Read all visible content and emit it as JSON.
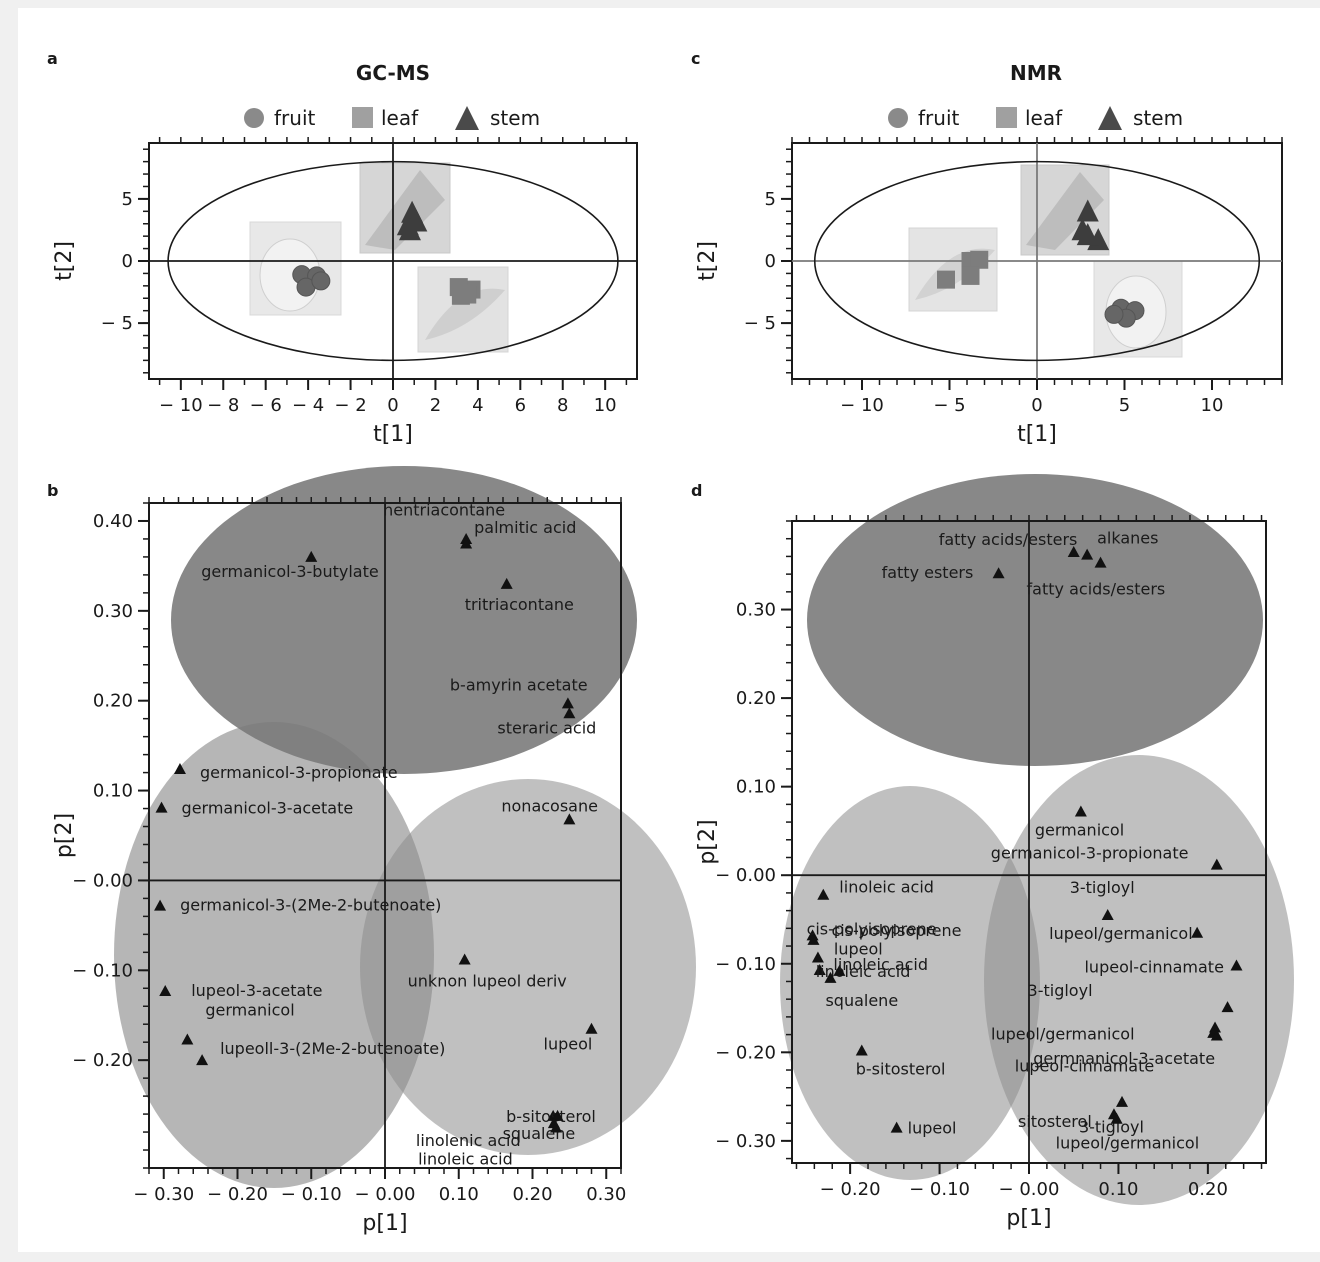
{
  "chart_data": [
    {
      "panel": "a",
      "type": "scatter",
      "title": "GC-MS",
      "xlabel": "t[1]",
      "ylabel": "t[2]",
      "xlim": [
        -11.5,
        11.5
      ],
      "ylim": [
        -9.5,
        9.5
      ],
      "xticks": [
        "− 10",
        "− 8",
        "− 6",
        "− 4",
        "− 2",
        "0",
        "2",
        "4",
        "6",
        "8",
        "10"
      ],
      "yticks": [
        "5",
        "0",
        "− 5"
      ],
      "legend": [
        "fruit",
        "leaf",
        "stem"
      ],
      "series": [
        {
          "name": "fruit",
          "points": [
            [
              -4.3,
              -1.1
            ],
            [
              -3.6,
              -1.2
            ],
            [
              -4.1,
              -2.1
            ],
            [
              -3.4,
              -1.6
            ]
          ]
        },
        {
          "name": "leaf",
          "points": [
            [
              3.2,
              -2.8
            ],
            [
              3.7,
              -2.3
            ],
            [
              3.1,
              -2.1
            ],
            [
              3.5,
              -2.7
            ]
          ]
        },
        {
          "name": "stem",
          "points": [
            [
              0.9,
              3.8
            ],
            [
              0.7,
              2.8
            ],
            [
              1.1,
              3.1
            ],
            [
              0.8,
              2.4
            ]
          ]
        }
      ]
    },
    {
      "panel": "c",
      "type": "scatter",
      "title": "NMR",
      "xlabel": "t[1]",
      "ylabel": "t[2]",
      "xlim": [
        -14,
        14
      ],
      "ylim": [
        -9.5,
        9.5
      ],
      "xticks": [
        "− 10",
        "− 5",
        "0",
        "5",
        "10"
      ],
      "yticks": [
        "5",
        "0",
        "− 5"
      ],
      "legend": [
        "fruit",
        "leaf",
        "stem"
      ],
      "series": [
        {
          "name": "fruit",
          "points": [
            [
              4.8,
              -3.8
            ],
            [
              5.6,
              -4.0
            ],
            [
              5.1,
              -4.6
            ],
            [
              4.4,
              -4.3
            ]
          ]
        },
        {
          "name": "leaf",
          "points": [
            [
              -3.8,
              0.0
            ],
            [
              -3.3,
              0.1
            ],
            [
              -3.8,
              -1.2
            ],
            [
              -5.2,
              -1.5
            ]
          ]
        },
        {
          "name": "stem",
          "points": [
            [
              2.9,
              3.9
            ],
            [
              2.6,
              2.4
            ],
            [
              3.5,
              1.6
            ],
            [
              2.9,
              2.0
            ]
          ]
        }
      ]
    },
    {
      "panel": "b",
      "type": "scatter",
      "xlabel": "p[1]",
      "ylabel": "p[2]",
      "xlim": [
        -0.32,
        0.32
      ],
      "ylim": [
        -0.32,
        0.42
      ],
      "xticks": [
        "− 0.30",
        "− 0.20",
        "− 0.10",
        "− 0.00",
        "0.10",
        "0.20",
        "0.30"
      ],
      "yticks": [
        "0.40",
        "0.30",
        "0.20",
        "0.10",
        "− 0.00",
        "− 0.10",
        "− 0.20"
      ],
      "points": [
        {
          "x": 0.11,
          "y": 0.38,
          "label": "palmitic acid"
        },
        {
          "x": 0.11,
          "y": 0.375,
          "label": "hentriacontane"
        },
        {
          "x": -0.1,
          "y": 0.36,
          "label": "germanicol-3-butylate"
        },
        {
          "x": 0.165,
          "y": 0.33,
          "label": "tritriacontane"
        },
        {
          "x": 0.248,
          "y": 0.197,
          "label": "b-amyrin acetate"
        },
        {
          "x": 0.25,
          "y": 0.186,
          "label": "steraric acid"
        },
        {
          "x": -0.278,
          "y": 0.124,
          "label": "germanicol-3-propionate"
        },
        {
          "x": -0.303,
          "y": 0.081,
          "label": "germanicol-3-acetate"
        },
        {
          "x": 0.25,
          "y": 0.068,
          "label": "nonacosane"
        },
        {
          "x": -0.305,
          "y": -0.028,
          "label": "germanicol-3-(2Me-2-butenoate)"
        },
        {
          "x": 0.108,
          "y": -0.088,
          "label": "unknon lupeol deriv"
        },
        {
          "x": -0.298,
          "y": -0.123,
          "label": "lupeol-3-acetate"
        },
        {
          "x": 0.28,
          "y": -0.165,
          "label": "lupeol"
        },
        {
          "x": -0.268,
          "y": -0.177,
          "label": "germanicol"
        },
        {
          "x": -0.248,
          "y": -0.2,
          "label": "lupeoll-3-(2Me-2-butenoate)"
        },
        {
          "x": 0.228,
          "y": -0.262,
          "label": "b-sitosterol"
        },
        {
          "x": 0.234,
          "y": -0.262,
          "label": "squalene"
        },
        {
          "x": 0.229,
          "y": -0.27,
          "label": "linolenic acid"
        },
        {
          "x": 0.232,
          "y": -0.275,
          "label": "linoleic acid"
        }
      ]
    },
    {
      "panel": "d",
      "type": "scatter",
      "xlabel": "p[1]",
      "ylabel": "p[2]",
      "xlim": [
        -0.265,
        0.265
      ],
      "ylim": [
        -0.325,
        0.4
      ],
      "xticks": [
        "− 0.20",
        "− 0.10",
        "− 0.00",
        "0.10",
        "0.20"
      ],
      "yticks": [
        "0.30",
        "0.20",
        "0.10",
        "− 0.00",
        "− 0.10",
        "− 0.20",
        "− 0.30"
      ],
      "points": [
        {
          "x": 0.05,
          "y": 0.365,
          "label": "fatty acids/esters"
        },
        {
          "x": 0.065,
          "y": 0.362,
          "label": "alkanes"
        },
        {
          "x": -0.034,
          "y": 0.341,
          "label": "fatty esters"
        },
        {
          "x": 0.08,
          "y": 0.353,
          "label": "fatty acids/esters"
        },
        {
          "x": 0.058,
          "y": 0.072,
          "label": "germanicol"
        },
        {
          "x": 0.21,
          "y": 0.012,
          "label": "germanicol-3-propionate"
        },
        {
          "x": -0.23,
          "y": -0.022,
          "label": "linoleic acid"
        },
        {
          "x": 0.088,
          "y": -0.045,
          "label": "3-tigloyl"
        },
        {
          "x": -0.242,
          "y": -0.068,
          "label": "cis-polyisoprene"
        },
        {
          "x": 0.188,
          "y": -0.065,
          "label": "lupeol/germanicol"
        },
        {
          "x": -0.241,
          "y": -0.073,
          "label": "cis-polyisoprene"
        },
        {
          "x": -0.236,
          "y": -0.093,
          "label": "lupeol"
        },
        {
          "x": 0.232,
          "y": -0.102,
          "label": "lupeol-cinnamate"
        },
        {
          "x": -0.234,
          "y": -0.107,
          "label": "linoleic acid"
        },
        {
          "x": -0.212,
          "y": -0.108,
          "label": "linoleic acid"
        },
        {
          "x": -0.222,
          "y": -0.116,
          "label": "squalene"
        },
        {
          "x": 0.222,
          "y": -0.149,
          "label": "3-tigloyl"
        },
        {
          "x": 0.208,
          "y": -0.172,
          "label": "lupeol/germanicol"
        },
        {
          "x": 0.206,
          "y": -0.178,
          "label": "germnanicol-3-acetate"
        },
        {
          "x": 0.21,
          "y": -0.181,
          "label": "lupeol-cinnamate"
        },
        {
          "x": -0.187,
          "y": -0.198,
          "label": "b-sitosterol"
        },
        {
          "x": 0.104,
          "y": -0.256,
          "label": "sitosterol"
        },
        {
          "x": 0.095,
          "y": -0.27,
          "label": "3-tigloyl"
        },
        {
          "x": -0.148,
          "y": -0.285,
          "label": "lupeol"
        },
        {
          "x": 0.098,
          "y": -0.275,
          "label": "lupeol/germanicol"
        }
      ]
    }
  ]
}
